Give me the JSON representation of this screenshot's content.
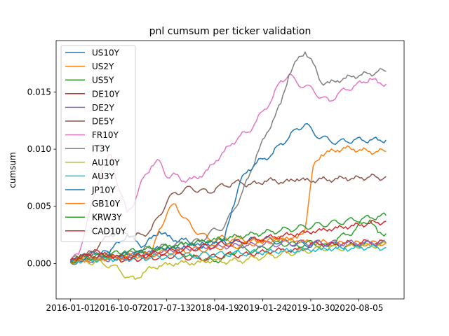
{
  "chart_data": {
    "type": "line",
    "title": "pnl cumsum per ticker validation",
    "xlabel": "",
    "ylabel": "cumsum",
    "x_start": "2016-01-01",
    "x_end": "2021-01-10",
    "xlim": [
      "2015-10-10",
      "2021-04-25"
    ],
    "ylim": [
      -0.0031,
      0.0195
    ],
    "x_ticks": [
      "2016-01-01",
      "2016-10-07",
      "2017-07-13",
      "2018-04-19",
      "2019-01-24",
      "2019-10-30",
      "2020-08-05"
    ],
    "y_ticks": [
      0.0,
      0.005,
      0.01,
      0.015
    ],
    "y_tick_labels": [
      "0.000",
      "0.005",
      "0.010",
      "0.015"
    ],
    "grid": false,
    "legend_position": "upper-left",
    "series": [
      {
        "name": "US10Y",
        "color": "#1f77b4",
        "values": [
          0.0002,
          0.0004,
          0.0007,
          0.0003,
          0.0005,
          0.0012,
          0.0018,
          0.0025,
          0.002,
          0.0015,
          0.0022,
          0.0028,
          0.0024,
          0.002,
          0.0021,
          0.0018,
          0.0016,
          0.0017,
          0.0019,
          0.002,
          0.0018,
          0.0019,
          0.002,
          0.0021,
          0.0022,
          0.002,
          0.0019,
          0.0018,
          0.0017,
          0.0016,
          0.0017,
          0.0018,
          0.0017,
          0.0016,
          0.0015,
          0.0016,
          0.0017,
          0.0018,
          0.0017,
          0.0018
        ]
      },
      {
        "name": "US2Y",
        "color": "#ff7f0e",
        "values": [
          0.0001,
          0.0002,
          0.0003,
          0.0004,
          0.0005,
          0.0004,
          0.0005,
          0.0006,
          0.0005,
          0.0006,
          0.0007,
          0.003,
          0.0045,
          0.0052,
          0.004,
          0.0032,
          0.0026,
          0.0022,
          0.002,
          0.0023,
          0.0021,
          0.0022,
          0.002,
          0.0019,
          0.002,
          0.0021,
          0.0022,
          0.0021,
          0.002,
          0.0019,
          0.0018,
          0.0019,
          0.0018,
          0.0017,
          0.0018,
          0.0017,
          0.0018,
          0.0017,
          0.0018,
          0.0018
        ]
      },
      {
        "name": "US5Y",
        "color": "#2ca02c",
        "values": [
          0.0003,
          0.0005,
          0.0006,
          0.0004,
          0.0006,
          0.0008,
          0.0007,
          0.0009,
          0.0008,
          0.001,
          0.0009,
          0.0012,
          0.0015,
          0.0012,
          0.0008,
          0.0006,
          0.0005,
          0.0003,
          0.0002,
          0.0005,
          0.0009,
          0.0014,
          0.0011,
          0.0012,
          0.0014,
          0.0016,
          0.0018,
          0.0017,
          0.0016,
          0.0017,
          0.0018,
          0.0016,
          0.0014,
          0.0022,
          0.0025,
          0.0028,
          0.0035,
          0.0038,
          0.0027,
          0.0026
        ]
      },
      {
        "name": "DE10Y",
        "color": "#d62728",
        "values": [
          0.0003,
          0.0005,
          0.0008,
          0.001,
          0.0009,
          0.0006,
          0.0004,
          0.0003,
          0.0004,
          0.0005,
          0.0006,
          0.0005,
          0.0006,
          0.0008,
          0.0006,
          0.0005,
          0.0004,
          0.0005,
          0.0006,
          0.0007,
          0.0008,
          0.0007,
          0.0008,
          0.0009,
          0.001,
          0.0011,
          0.0012,
          0.0011,
          0.0012,
          0.0013,
          0.0018,
          0.0017,
          0.0016,
          0.0017,
          0.0018,
          0.0017,
          0.0018,
          0.0019,
          0.0018,
          0.0018
        ]
      },
      {
        "name": "DE2Y",
        "color": "#9467bd",
        "values": [
          0.0001,
          0.0002,
          0.0003,
          0.0003,
          0.0004,
          0.0004,
          0.0005,
          0.0006,
          0.0007,
          0.0008,
          0.0009,
          0.001,
          0.0011,
          0.0012,
          0.0012,
          0.0013,
          0.0013,
          0.0014,
          0.0014,
          0.0015,
          0.0015,
          0.0016,
          0.0016,
          0.0016,
          0.0017,
          0.0017,
          0.0017,
          0.0018,
          0.0018,
          0.0018,
          0.0018,
          0.0018,
          0.0018,
          0.0018,
          0.0018,
          0.0018,
          0.0018,
          0.0018,
          0.0018,
          0.0018
        ]
      },
      {
        "name": "DE5Y",
        "color": "#8c564b",
        "values": [
          0.0002,
          0.0005,
          0.0008,
          0.0012,
          0.002,
          0.0025,
          0.0028,
          0.0026,
          0.0024,
          0.0025,
          0.003,
          0.0042,
          0.0055,
          0.0062,
          0.0064,
          0.0066,
          0.0064,
          0.0062,
          0.0066,
          0.0068,
          0.007,
          0.0071,
          0.0069,
          0.007,
          0.0072,
          0.0073,
          0.0071,
          0.0072,
          0.0074,
          0.0073,
          0.0072,
          0.0074,
          0.0073,
          0.0074,
          0.0075,
          0.0074,
          0.0075,
          0.0076,
          0.0075,
          0.0076
        ]
      },
      {
        "name": "FR10Y",
        "color": "#e377c2",
        "values": [
          0.0002,
          0.0008,
          0.0035,
          0.006,
          0.0085,
          0.0095,
          0.0065,
          0.0045,
          0.0055,
          0.0075,
          0.0085,
          0.009,
          0.0075,
          0.0078,
          0.0072,
          0.0074,
          0.0076,
          0.0082,
          0.009,
          0.0098,
          0.0105,
          0.0112,
          0.0115,
          0.0125,
          0.0135,
          0.0145,
          0.016,
          0.0165,
          0.0158,
          0.0155,
          0.0152,
          0.0145,
          0.0142,
          0.0148,
          0.0152,
          0.0155,
          0.0158,
          0.0162,
          0.0158,
          0.0157
        ]
      },
      {
        "name": "IT3Y",
        "color": "#7f7f7f",
        "values": [
          0.0001,
          0.0002,
          0.0005,
          0.0008,
          0.0006,
          0.0004,
          0.0006,
          0.0008,
          0.001,
          0.0012,
          0.0013,
          0.0014,
          0.0015,
          0.0017,
          0.0016,
          0.0018,
          0.002,
          0.0025,
          0.003,
          0.0032,
          0.0045,
          0.0058,
          0.0075,
          0.0095,
          0.011,
          0.0125,
          0.014,
          0.0165,
          0.0178,
          0.0185,
          0.0175,
          0.0158,
          0.0158,
          0.016,
          0.0162,
          0.0164,
          0.0165,
          0.0166,
          0.0168,
          0.0168
        ]
      },
      {
        "name": "AU10Y",
        "color": "#bcbd22",
        "values": [
          0.0002,
          0.0003,
          0.0002,
          0.0001,
          0.0,
          -0.0002,
          -0.0005,
          -0.0012,
          -0.0014,
          -0.0008,
          -0.0004,
          -0.0002,
          -0.0001,
          0.0,
          0.0001,
          0.0,
          0.0001,
          0.0002,
          0.0003,
          0.0001,
          0.0003,
          0.0002,
          0.0004,
          0.0005,
          0.0006,
          0.0007,
          0.0008,
          0.0009,
          0.001,
          0.0011,
          0.0012,
          0.0013,
          0.0014,
          0.0013,
          0.0014,
          0.0015,
          0.0016,
          0.0015,
          0.0016,
          0.0017
        ]
      },
      {
        "name": "AU3Y",
        "color": "#17becf",
        "values": [
          0.0001,
          0.0002,
          0.0002,
          0.0003,
          0.0003,
          0.0004,
          0.0004,
          0.0004,
          0.0005,
          0.0005,
          0.0005,
          0.0006,
          0.0006,
          0.0006,
          0.0007,
          0.0007,
          0.0007,
          0.0008,
          0.0008,
          0.0008,
          0.0009,
          0.0009,
          0.0009,
          0.001,
          0.001,
          0.001,
          0.0011,
          0.0011,
          0.0011,
          0.0012,
          0.0012,
          0.0012,
          0.0013,
          0.0013,
          0.0013,
          0.0013,
          0.0014,
          0.0014,
          0.0014,
          0.0014
        ]
      },
      {
        "name": "JP10Y",
        "color": "#1f77b4",
        "values": [
          0.0001,
          0.0003,
          0.0006,
          0.0009,
          0.0011,
          0.0006,
          0.0005,
          0.0008,
          0.001,
          0.0009,
          0.0011,
          0.0013,
          0.0014,
          0.0013,
          0.0015,
          0.0016,
          0.0014,
          0.0018,
          0.0019,
          0.002,
          0.0048,
          0.0072,
          0.0082,
          0.0088,
          0.0092,
          0.0096,
          0.0105,
          0.011,
          0.0118,
          0.0122,
          0.0115,
          0.011,
          0.0108,
          0.0106,
          0.0107,
          0.0108,
          0.0108,
          0.0108,
          0.0108,
          0.0108
        ]
      },
      {
        "name": "GB10Y",
        "color": "#ff7f0e",
        "values": [
          0.0001,
          0.0002,
          0.0003,
          0.0003,
          0.0004,
          0.0005,
          0.0005,
          0.0006,
          0.0007,
          0.0007,
          0.0008,
          0.0009,
          0.001,
          0.001,
          0.0011,
          0.0012,
          0.0012,
          0.0013,
          0.0014,
          0.0015,
          0.0015,
          0.0016,
          0.0017,
          0.0018,
          0.0019,
          0.002,
          0.0022,
          0.0021,
          0.0022,
          0.003,
          0.0085,
          0.0095,
          0.0098,
          0.0099,
          0.0101,
          0.01,
          0.0099,
          0.0098,
          0.0098,
          0.0098
        ]
      },
      {
        "name": "KRW3Y",
        "color": "#2ca02c",
        "values": [
          0.0002,
          0.0004,
          0.0005,
          0.0006,
          0.0007,
          0.0008,
          0.0009,
          0.001,
          0.0011,
          0.0012,
          0.0013,
          0.0014,
          0.0015,
          0.0016,
          0.0017,
          0.0018,
          0.0019,
          0.002,
          0.0021,
          0.0022,
          0.0023,
          0.0024,
          0.0025,
          0.0026,
          0.0027,
          0.0028,
          0.0029,
          0.003,
          0.0031,
          0.0032,
          0.0033,
          0.0034,
          0.0035,
          0.0036,
          0.0037,
          0.0038,
          0.0039,
          0.004,
          0.0041,
          0.0042
        ]
      },
      {
        "name": "CAD10Y",
        "color": "#d62728",
        "values": [
          0.0003,
          0.0005,
          0.0007,
          0.0006,
          0.0008,
          0.0007,
          0.0006,
          0.0005,
          0.0006,
          0.0007,
          0.0008,
          0.0009,
          0.001,
          0.0011,
          0.0012,
          0.0013,
          0.0014,
          0.0015,
          0.0016,
          0.0017,
          0.0018,
          0.0019,
          0.002,
          0.0021,
          0.0022,
          0.0023,
          0.0024,
          0.0025,
          0.0026,
          0.0027,
          0.0028,
          0.0029,
          0.003,
          0.0031,
          0.0032,
          0.0033,
          0.0034,
          0.0035,
          0.0036,
          0.0037
        ]
      }
    ]
  }
}
